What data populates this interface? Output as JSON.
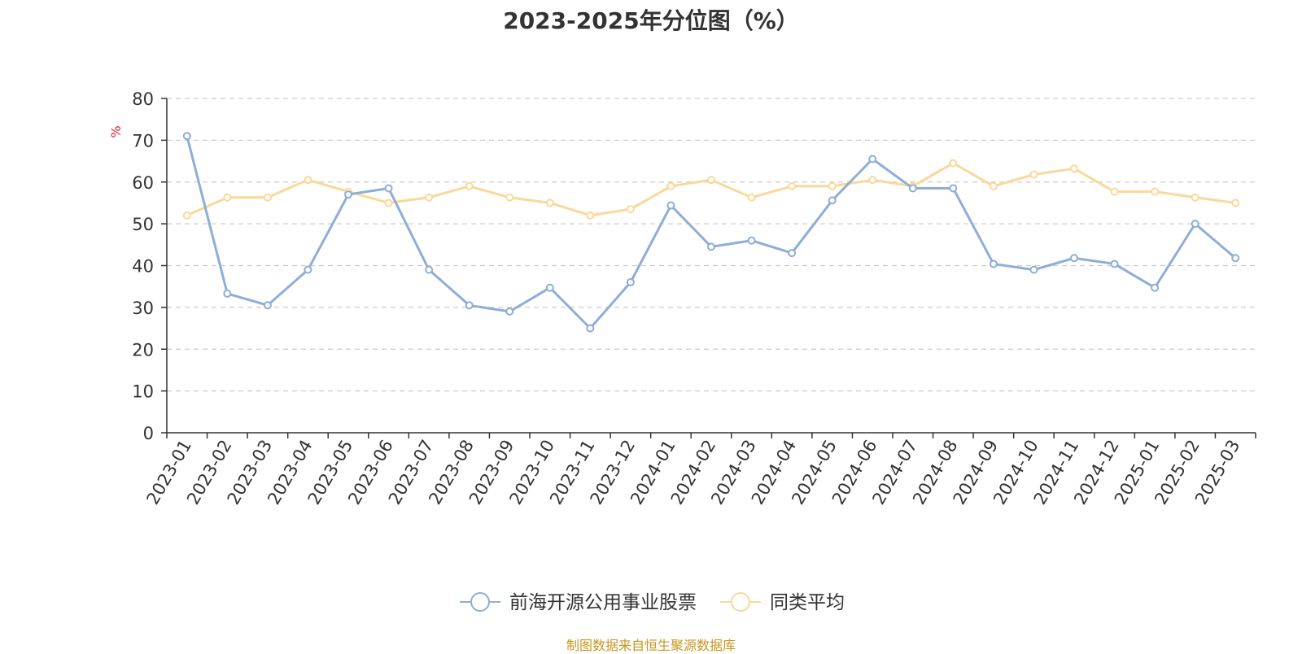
{
  "chart_data": {
    "type": "line",
    "title": "2023-2025年分位图（%）",
    "ylabel": "%",
    "xlabel": "",
    "ylim": [
      0,
      80
    ],
    "yticks": [
      0,
      10,
      20,
      30,
      40,
      50,
      60,
      70,
      80
    ],
    "grid": true,
    "legend_position": "bottom",
    "categories": [
      "2023-01",
      "2023-02",
      "2023-03",
      "2023-04",
      "2023-05",
      "2023-06",
      "2023-07",
      "2023-08",
      "2023-09",
      "2023-10",
      "2023-11",
      "2023-12",
      "2024-01",
      "2024-02",
      "2024-03",
      "2024-04",
      "2024-05",
      "2024-06",
      "2024-07",
      "2024-08",
      "2024-09",
      "2024-10",
      "2024-11",
      "2024-12",
      "2025-01",
      "2025-02",
      "2025-03"
    ],
    "series": [
      {
        "name": "前海开源公用事业股票",
        "color": "#8eadd8",
        "values": [
          71,
          33.3,
          30.5,
          39,
          57,
          58.5,
          39,
          30.5,
          29,
          34.7,
          25,
          36,
          54.4,
          44.5,
          46,
          43,
          55.6,
          65.5,
          58.5,
          58.5,
          40.4,
          39,
          41.8,
          40.4,
          34.7,
          50,
          41.8
        ]
      },
      {
        "name": "同类平均",
        "color": "#fad899",
        "values": [
          52,
          56.3,
          56.3,
          60.5,
          57.7,
          55,
          56.3,
          59,
          56.3,
          55,
          52,
          53.5,
          59,
          60.5,
          56.3,
          59,
          59,
          60.5,
          59,
          64.5,
          59,
          61.8,
          63.2,
          57.7,
          57.7,
          56.3,
          55
        ]
      }
    ]
  },
  "source_note": "制图数据来自恒生聚源数据库"
}
